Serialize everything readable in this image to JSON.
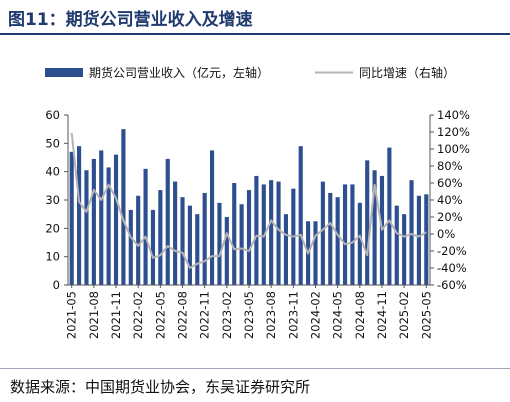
{
  "figure": {
    "title": "图11：期货公司营业收入及增速",
    "source": "数据来源：中国期货业协会，东吴证券研究所"
  },
  "chart_data": {
    "type": "bar+line",
    "categories": [
      "2021-05",
      "2021-06",
      "2021-07",
      "2021-08",
      "2021-09",
      "2021-10",
      "2021-11",
      "2021-12",
      "2022-01",
      "2022-02",
      "2022-03",
      "2022-04",
      "2022-05",
      "2022-06",
      "2022-07",
      "2022-08",
      "2022-09",
      "2022-10",
      "2022-11",
      "2022-12",
      "2023-01",
      "2023-02",
      "2023-03",
      "2023-04",
      "2023-05",
      "2023-06",
      "2023-07",
      "2023-08",
      "2023-09",
      "2023-10",
      "2023-11",
      "2023-12",
      "2024-01",
      "2024-02",
      "2024-03",
      "2024-04",
      "2024-05",
      "2024-06",
      "2024-07",
      "2024-08",
      "2024-09",
      "2024-10",
      "2024-11",
      "2024-12",
      "2025-01",
      "2025-02",
      "2025-03",
      "2025-04",
      "2025-05"
    ],
    "x_tick_labels": [
      "2021-05",
      "2021-08",
      "2021-11",
      "2022-02",
      "2022-05",
      "2022-08",
      "2022-11",
      "2023-02",
      "2023-05",
      "2023-08",
      "2023-11",
      "2024-02",
      "2024-05",
      "2024-08",
      "2024-11",
      "2025-02",
      "2025-05"
    ],
    "series": [
      {
        "name": "期货公司营业收入（亿元，左轴）",
        "type": "bar",
        "axis": "left",
        "color": "#2e4f8f",
        "values": [
          47,
          49,
          40.5,
          44.5,
          47.5,
          41.5,
          46,
          55,
          26.5,
          31.5,
          41,
          26.5,
          33.5,
          44.5,
          36.5,
          31,
          28,
          25,
          32.5,
          47.5,
          29,
          24,
          36,
          28.5,
          33.5,
          38.5,
          35.5,
          37,
          36.5,
          25,
          34,
          49,
          22.5,
          22.5,
          36.5,
          32.5,
          31,
          35.5,
          35.5,
          29,
          44,
          40.5,
          38.5,
          48.5,
          28,
          25,
          37,
          31.5,
          32
        ]
      },
      {
        "name": "同比增速（右轴）",
        "type": "line",
        "axis": "right",
        "color": "#b4b4b4",
        "values": [
          119,
          38,
          26,
          52,
          40,
          58,
          42,
          16,
          -4,
          -14,
          -3,
          -28,
          -25,
          -14,
          -20,
          -22,
          -40,
          -35,
          -32,
          -26,
          -26,
          1,
          -18,
          -17,
          -20,
          -2,
          -3,
          16,
          5,
          -1,
          -3,
          -1,
          -23,
          -2,
          5,
          13,
          -1,
          -12,
          -10,
          -2,
          -25,
          58,
          5,
          16,
          1,
          -3,
          0,
          -3,
          2
        ]
      }
    ],
    "left_axis": {
      "ylim": [
        0,
        60
      ],
      "ticks": [
        "0",
        "10",
        "20",
        "30",
        "40",
        "50",
        "60"
      ]
    },
    "right_axis": {
      "ylim": [
        -60,
        140
      ],
      "ticks": [
        "-60%",
        "-40%",
        "-20%",
        "0%",
        "20%",
        "40%",
        "60%",
        "80%",
        "100%",
        "120%",
        "140%"
      ]
    },
    "legend_position": "top",
    "grid": false
  }
}
